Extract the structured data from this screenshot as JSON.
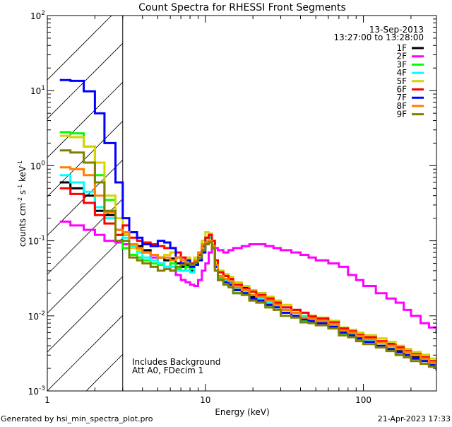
{
  "chart_data": {
    "type": "line",
    "title": "Count Spectra for RHESSI Front Segments",
    "xlabel": "Energy (keV)",
    "ylabel": "counts cm⁻² s⁻¹ keV⁻¹",
    "ylabel_parts": {
      "base": "counts cm",
      "e1": "-2",
      "mid1": " s",
      "e2": "-1",
      "mid2": " keV",
      "e3": "-1"
    },
    "xscale": "log",
    "yscale": "log",
    "xlim": [
      1,
      290
    ],
    "ylim": [
      0.001,
      100
    ],
    "xticks": [
      {
        "value": 1,
        "label": "1"
      },
      {
        "value": 10,
        "label": "10"
      },
      {
        "value": 100,
        "label": "100"
      }
    ],
    "yticks": [
      {
        "value": 100,
        "base": "10",
        "exp": "2"
      },
      {
        "value": 10,
        "base": "10",
        "exp": "1"
      },
      {
        "value": 1,
        "base": "10",
        "exp": "0"
      },
      {
        "value": 0.1,
        "base": "10",
        "exp": "-1"
      },
      {
        "value": 0.01,
        "base": "10",
        "exp": "-2"
      },
      {
        "value": 0.001,
        "base": "10",
        "exp": "-3"
      }
    ],
    "shaded_region_keV": [
      1,
      3
    ],
    "date": "13-Sep-2013",
    "time_range": "13:27:00 to 13:28:00",
    "notes": [
      "Includes Background",
      "Att A0, FDecim 1"
    ],
    "legend_position": "top-right",
    "energy": [
      1.2,
      1.4,
      1.7,
      2.0,
      2.3,
      2.7,
      3.0,
      3.3,
      3.7,
      4.0,
      4.5,
      5,
      5.5,
      6,
      6.5,
      7,
      7.5,
      8,
      8.5,
      9,
      9.5,
      10,
      10.5,
      11,
      11.5,
      12,
      13,
      14,
      15,
      17,
      19,
      21,
      24,
      27,
      30,
      35,
      40,
      45,
      50,
      60,
      70,
      80,
      90,
      100,
      120,
      140,
      160,
      180,
      200,
      230,
      260,
      290
    ],
    "energy_max": 300,
    "series": [
      {
        "name": "1F",
        "color": "#000000",
        "values": [
          0.6,
          0.5,
          0.4,
          0.25,
          0.22,
          0.14,
          0.12,
          0.09,
          0.085,
          0.075,
          0.065,
          0.06,
          0.055,
          0.058,
          0.05,
          0.045,
          0.048,
          0.04,
          0.05,
          0.065,
          0.085,
          0.11,
          0.115,
          0.085,
          0.045,
          0.03,
          0.034,
          0.028,
          0.022,
          0.024,
          0.018,
          0.02,
          0.014,
          0.015,
          0.012,
          0.012,
          0.009,
          0.01,
          0.0085,
          0.0085,
          0.006,
          0.0065,
          0.005,
          0.0055,
          0.004,
          0.0042,
          0.0034,
          0.0036,
          0.0028,
          0.003,
          0.0024,
          0.0023
        ]
      },
      {
        "name": "2F",
        "color": "#ff00ff",
        "values": [
          0.18,
          0.16,
          0.14,
          0.12,
          0.1,
          0.095,
          0.09,
          0.085,
          0.08,
          0.07,
          0.06,
          0.05,
          0.045,
          0.04,
          0.035,
          0.03,
          0.028,
          0.026,
          0.025,
          0.03,
          0.04,
          0.05,
          0.07,
          0.08,
          0.08,
          0.075,
          0.07,
          0.075,
          0.08,
          0.085,
          0.09,
          0.09,
          0.085,
          0.08,
          0.075,
          0.07,
          0.065,
          0.06,
          0.055,
          0.05,
          0.045,
          0.035,
          0.03,
          0.025,
          0.02,
          0.017,
          0.015,
          0.012,
          0.01,
          0.008,
          0.007,
          0.006
        ]
      },
      {
        "name": "3F",
        "color": "#00ff00",
        "values": [
          2.8,
          2.7,
          1.8,
          0.75,
          0.35,
          0.1,
          0.08,
          0.065,
          0.06,
          0.055,
          0.05,
          0.048,
          0.045,
          0.05,
          0.042,
          0.04,
          0.045,
          0.042,
          0.05,
          0.06,
          0.08,
          0.1,
          0.11,
          0.08,
          0.04,
          0.032,
          0.028,
          0.026,
          0.02,
          0.02,
          0.016,
          0.017,
          0.013,
          0.013,
          0.011,
          0.01,
          0.0085,
          0.0088,
          0.008,
          0.0072,
          0.0058,
          0.0056,
          0.0048,
          0.0046,
          0.004,
          0.0037,
          0.0032,
          0.0031,
          0.0027,
          0.0026,
          0.0023,
          0.002
        ]
      },
      {
        "name": "4F",
        "color": "#00ffff",
        "values": [
          0.75,
          0.6,
          0.45,
          0.28,
          0.2,
          0.12,
          0.11,
          0.085,
          0.07,
          0.06,
          0.055,
          0.05,
          0.045,
          0.045,
          0.04,
          0.04,
          0.04,
          0.038,
          0.048,
          0.06,
          0.08,
          0.1,
          0.115,
          0.09,
          0.045,
          0.034,
          0.03,
          0.027,
          0.023,
          0.021,
          0.019,
          0.017,
          0.015,
          0.014,
          0.012,
          0.011,
          0.01,
          0.009,
          0.0088,
          0.0078,
          0.0065,
          0.006,
          0.0054,
          0.0048,
          0.0045,
          0.004,
          0.0036,
          0.0032,
          0.003,
          0.0027,
          0.0025,
          0.0022
        ]
      },
      {
        "name": "5F",
        "color": "#d4d400",
        "values": [
          2.5,
          2.4,
          1.8,
          1.1,
          0.4,
          0.2,
          0.12,
          0.08,
          0.075,
          0.07,
          0.065,
          0.06,
          0.065,
          0.07,
          0.06,
          0.055,
          0.06,
          0.05,
          0.06,
          0.07,
          0.1,
          0.13,
          0.125,
          0.09,
          0.05,
          0.04,
          0.036,
          0.033,
          0.028,
          0.025,
          0.022,
          0.02,
          0.018,
          0.016,
          0.014,
          0.012,
          0.011,
          0.01,
          0.0095,
          0.0085,
          0.007,
          0.0065,
          0.006,
          0.0055,
          0.005,
          0.0045,
          0.004,
          0.0036,
          0.0033,
          0.003,
          0.0027,
          0.0024
        ]
      },
      {
        "name": "6F",
        "color": "#ff0000",
        "values": [
          0.5,
          0.42,
          0.32,
          0.22,
          0.17,
          0.12,
          0.16,
          0.11,
          0.1,
          0.095,
          0.09,
          0.085,
          0.08,
          0.08,
          0.07,
          0.06,
          0.055,
          0.05,
          0.055,
          0.065,
          0.085,
          0.11,
          0.12,
          0.1,
          0.055,
          0.038,
          0.034,
          0.031,
          0.026,
          0.023,
          0.021,
          0.019,
          0.017,
          0.015,
          0.013,
          0.012,
          0.011,
          0.0098,
          0.0092,
          0.0082,
          0.0068,
          0.0062,
          0.0056,
          0.0052,
          0.0046,
          0.0041,
          0.0038,
          0.0034,
          0.0031,
          0.0028,
          0.0025,
          0.0022
        ]
      },
      {
        "name": "7F",
        "color": "#0000ff",
        "values": [
          13.8,
          13.5,
          9.8,
          5.0,
          2.0,
          0.6,
          0.2,
          0.13,
          0.11,
          0.09,
          0.085,
          0.1,
          0.095,
          0.08,
          0.06,
          0.05,
          0.055,
          0.045,
          0.048,
          0.055,
          0.07,
          0.09,
          0.1,
          0.08,
          0.045,
          0.03,
          0.028,
          0.026,
          0.022,
          0.02,
          0.017,
          0.016,
          0.014,
          0.013,
          0.011,
          0.01,
          0.009,
          0.0085,
          0.008,
          0.0072,
          0.006,
          0.0055,
          0.005,
          0.0045,
          0.004,
          0.0036,
          0.0033,
          0.003,
          0.0027,
          0.0025,
          0.0022,
          0.002
        ]
      },
      {
        "name": "8F",
        "color": "#ff8000",
        "values": [
          0.95,
          0.9,
          0.75,
          0.4,
          0.24,
          0.14,
          0.13,
          0.09,
          0.08,
          0.07,
          0.065,
          0.06,
          0.06,
          0.055,
          0.06,
          0.055,
          0.05,
          0.048,
          0.055,
          0.07,
          0.09,
          0.095,
          0.1,
          0.085,
          0.048,
          0.034,
          0.031,
          0.029,
          0.024,
          0.022,
          0.019,
          0.018,
          0.016,
          0.014,
          0.012,
          0.011,
          0.0095,
          0.0092,
          0.0085,
          0.0078,
          0.0064,
          0.006,
          0.0054,
          0.0049,
          0.0044,
          0.004,
          0.0036,
          0.0033,
          0.003,
          0.0027,
          0.0024,
          0.0022
        ]
      },
      {
        "name": "9F",
        "color": "#808000",
        "values": [
          1.6,
          1.5,
          1.1,
          0.6,
          0.25,
          0.1,
          0.1,
          0.06,
          0.055,
          0.05,
          0.045,
          0.04,
          0.042,
          0.04,
          0.045,
          0.048,
          0.05,
          0.048,
          0.052,
          0.06,
          0.075,
          0.09,
          0.095,
          0.08,
          0.04,
          0.03,
          0.026,
          0.024,
          0.02,
          0.019,
          0.016,
          0.015,
          0.013,
          0.012,
          0.01,
          0.0095,
          0.0082,
          0.008,
          0.0075,
          0.0068,
          0.0055,
          0.0052,
          0.0046,
          0.0042,
          0.0038,
          0.0034,
          0.003,
          0.0028,
          0.0025,
          0.0023,
          0.0021,
          0.0019
        ]
      }
    ]
  },
  "footer": {
    "generated_by": "Generated by hsi_min_spectra_plot.pro",
    "timestamp": "21-Apr-2023 17:33"
  }
}
